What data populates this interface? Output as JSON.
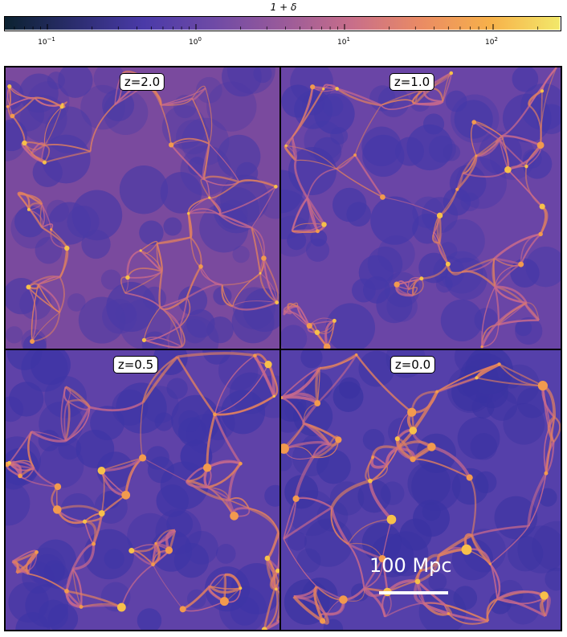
{
  "colorbar": {
    "label": "1 + δ",
    "colors": [
      "#0b2230",
      "#2b2d6e",
      "#4a3aa8",
      "#6e4aa6",
      "#995a9a",
      "#c86e8a",
      "#ea8b64",
      "#f7b14a",
      "#f2e86a"
    ],
    "scale": "log",
    "ticks": [
      {
        "base": "10",
        "exp": "−1"
      },
      {
        "base": "10",
        "exp": "0"
      },
      {
        "base": "10",
        "exp": "1"
      },
      {
        "base": "10",
        "exp": "2"
      }
    ]
  },
  "panels": [
    {
      "label": "z=2.0"
    },
    {
      "label": "z=1.0"
    },
    {
      "label": "z=0.5"
    },
    {
      "label": "z=0.0"
    }
  ],
  "scalebar": {
    "label": "100 Mpc"
  }
}
